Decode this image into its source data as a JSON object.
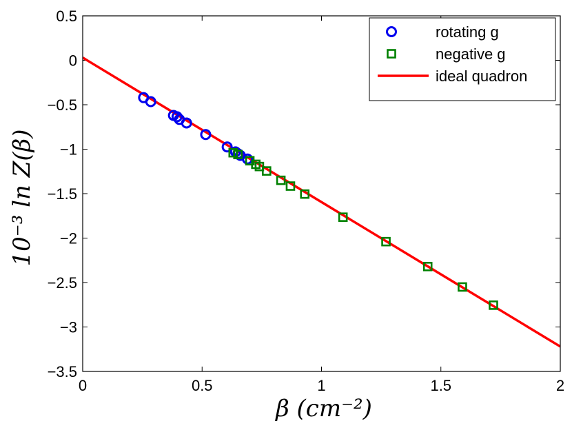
{
  "chart_data": {
    "type": "scatter",
    "title": "",
    "xlabel": "β (cm⁻²)",
    "ylabel": "10⁻³ ln Z(β)",
    "xlim": [
      0,
      2
    ],
    "ylim": [
      -3.5,
      0.5
    ],
    "x_ticks": [
      0,
      0.5,
      1,
      1.5,
      2
    ],
    "x_tick_labels": [
      "0",
      "0.5",
      "1",
      "1.5",
      "2"
    ],
    "y_ticks": [
      0.5,
      0,
      -0.5,
      -1,
      -1.5,
      -2,
      -2.5,
      -3,
      -3.5
    ],
    "y_tick_labels": [
      "0.5",
      "0",
      "−0.5",
      "−1",
      "−1.5",
      "−2",
      "−2.5",
      "−3",
      "−3.5"
    ],
    "grid": false,
    "legend_position": "top-right",
    "series": [
      {
        "name": "rotating g",
        "marker": "circle",
        "color": "#0000ee",
        "points": [
          [
            0.255,
            -0.42
          ],
          [
            0.285,
            -0.465
          ],
          [
            0.38,
            -0.62
          ],
          [
            0.395,
            -0.635
          ],
          [
            0.405,
            -0.665
          ],
          [
            0.435,
            -0.705
          ],
          [
            0.515,
            -0.835
          ],
          [
            0.605,
            -0.975
          ],
          [
            0.64,
            -1.03
          ],
          [
            0.65,
            -1.05
          ],
          [
            0.66,
            -1.07
          ],
          [
            0.69,
            -1.11
          ]
        ]
      },
      {
        "name": "negative g",
        "marker": "square",
        "color": "#008000",
        "points": [
          [
            0.63,
            -1.04
          ],
          [
            0.65,
            -1.06
          ],
          [
            0.7,
            -1.13
          ],
          [
            0.725,
            -1.17
          ],
          [
            0.74,
            -1.195
          ],
          [
            0.77,
            -1.245
          ],
          [
            0.83,
            -1.35
          ],
          [
            0.87,
            -1.415
          ],
          [
            0.93,
            -1.505
          ],
          [
            1.09,
            -1.765
          ],
          [
            1.27,
            -2.04
          ],
          [
            1.445,
            -2.32
          ],
          [
            1.59,
            -2.55
          ],
          [
            1.72,
            -2.755
          ]
        ]
      },
      {
        "name": "ideal quadron",
        "type": "line",
        "color": "#ff0000",
        "points": [
          [
            0,
            0.03
          ],
          [
            2,
            -3.22
          ]
        ]
      }
    ]
  },
  "legend": {
    "items": [
      "rotating g",
      "negative g",
      "ideal quadron"
    ]
  }
}
